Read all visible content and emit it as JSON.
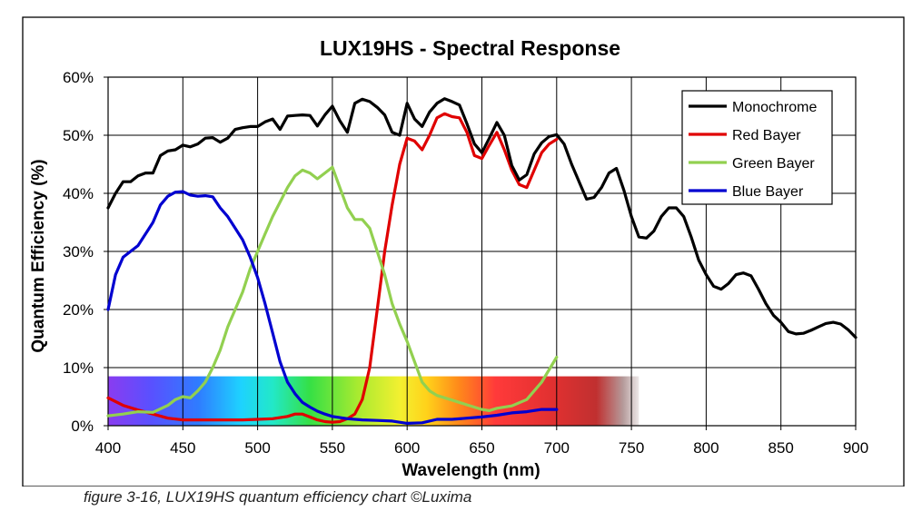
{
  "caption": "figure 3-16, LUX19HS quantum efficiency chart ©Luxima",
  "chart_data": {
    "type": "line",
    "title": "LUX19HS - Spectral Response",
    "xlabel": "Wavelength (nm)",
    "ylabel": "Quantum Efficiency (%)",
    "xlim": [
      400,
      900
    ],
    "ylim": [
      0,
      60
    ],
    "x_ticks": [
      400,
      450,
      500,
      550,
      600,
      650,
      700,
      750,
      800,
      850,
      900
    ],
    "y_ticks": [
      0,
      10,
      20,
      30,
      40,
      50,
      60
    ],
    "y_tick_suffix": "%",
    "grid": true,
    "legend_position": "top-right",
    "background_band": {
      "type": "visible-spectrum",
      "x_range": [
        400,
        755
      ],
      "y_range": [
        0,
        8.5
      ]
    },
    "series": [
      {
        "name": "Monochrome",
        "color": "#000000",
        "points": [
          [
            400,
            37.5
          ],
          [
            405,
            40
          ],
          [
            410,
            42
          ],
          [
            415,
            42
          ],
          [
            420,
            43
          ],
          [
            425,
            43.5
          ],
          [
            430,
            43.5
          ],
          [
            435,
            46.5
          ],
          [
            440,
            47.3
          ],
          [
            445,
            47.5
          ],
          [
            450,
            48.3
          ],
          [
            455,
            48
          ],
          [
            460,
            48.5
          ],
          [
            465,
            49.5
          ],
          [
            470,
            49.6
          ],
          [
            475,
            48.8
          ],
          [
            480,
            49.5
          ],
          [
            485,
            51
          ],
          [
            490,
            51.3
          ],
          [
            495,
            51.5
          ],
          [
            500,
            51.5
          ],
          [
            505,
            52.3
          ],
          [
            510,
            52.8
          ],
          [
            515,
            51
          ],
          [
            520,
            53.3
          ],
          [
            525,
            53.4
          ],
          [
            530,
            53.5
          ],
          [
            535,
            53.4
          ],
          [
            540,
            51.6
          ],
          [
            545,
            53.5
          ],
          [
            550,
            55
          ],
          [
            555,
            52.5
          ],
          [
            560,
            50.5
          ],
          [
            565,
            55.5
          ],
          [
            570,
            56.2
          ],
          [
            575,
            55.8
          ],
          [
            580,
            54.8
          ],
          [
            585,
            53.5
          ],
          [
            590,
            50.5
          ],
          [
            595,
            50
          ],
          [
            600,
            55.5
          ],
          [
            605,
            52.8
          ],
          [
            610,
            51.5
          ],
          [
            615,
            54
          ],
          [
            620,
            55.5
          ],
          [
            625,
            56.3
          ],
          [
            630,
            55.8
          ],
          [
            635,
            55.2
          ],
          [
            640,
            52
          ],
          [
            645,
            48.5
          ],
          [
            650,
            47
          ],
          [
            655,
            49.5
          ],
          [
            660,
            52.2
          ],
          [
            665,
            50
          ],
          [
            670,
            44.8
          ],
          [
            675,
            42.3
          ],
          [
            680,
            43.2
          ],
          [
            685,
            46.8
          ],
          [
            690,
            48.7
          ],
          [
            695,
            49.8
          ],
          [
            700,
            50.1
          ],
          [
            705,
            48.5
          ],
          [
            710,
            45
          ],
          [
            715,
            42
          ],
          [
            720,
            39
          ],
          [
            725,
            39.3
          ],
          [
            730,
            41
          ],
          [
            735,
            43.5
          ],
          [
            740,
            44.3
          ],
          [
            745,
            40.5
          ],
          [
            750,
            36
          ],
          [
            755,
            32.5
          ],
          [
            760,
            32.3
          ],
          [
            765,
            33.5
          ],
          [
            770,
            36
          ],
          [
            775,
            37.5
          ],
          [
            780,
            37.5
          ],
          [
            785,
            36
          ],
          [
            790,
            32.5
          ],
          [
            795,
            28.5
          ],
          [
            800,
            26
          ],
          [
            805,
            24
          ],
          [
            810,
            23.5
          ],
          [
            815,
            24.5
          ],
          [
            820,
            26
          ],
          [
            825,
            26.3
          ],
          [
            830,
            25.8
          ],
          [
            835,
            23.5
          ],
          [
            840,
            21
          ],
          [
            845,
            19
          ],
          [
            850,
            17.8
          ],
          [
            855,
            16.2
          ],
          [
            860,
            15.8
          ],
          [
            865,
            15.9
          ],
          [
            870,
            16.4
          ],
          [
            875,
            17
          ],
          [
            880,
            17.6
          ],
          [
            885,
            17.8
          ],
          [
            890,
            17.5
          ],
          [
            895,
            16.5
          ],
          [
            900,
            15.2
          ]
        ]
      },
      {
        "name": "Red Bayer",
        "color": "#e00000",
        "points": [
          [
            400,
            4.8
          ],
          [
            410,
            3.5
          ],
          [
            420,
            2.7
          ],
          [
            430,
            2
          ],
          [
            440,
            1.3
          ],
          [
            450,
            1
          ],
          [
            460,
            1
          ],
          [
            470,
            1
          ],
          [
            480,
            1
          ],
          [
            490,
            1
          ],
          [
            500,
            1.1
          ],
          [
            510,
            1.2
          ],
          [
            520,
            1.6
          ],
          [
            525,
            2
          ],
          [
            530,
            2
          ],
          [
            535,
            1.5
          ],
          [
            540,
            1
          ],
          [
            545,
            0.7
          ],
          [
            550,
            0.6
          ],
          [
            555,
            0.7
          ],
          [
            560,
            1.2
          ],
          [
            565,
            2
          ],
          [
            570,
            4.5
          ],
          [
            575,
            10
          ],
          [
            580,
            20
          ],
          [
            585,
            30
          ],
          [
            590,
            38
          ],
          [
            595,
            45
          ],
          [
            600,
            49.5
          ],
          [
            605,
            49
          ],
          [
            610,
            47.5
          ],
          [
            615,
            50
          ],
          [
            620,
            53
          ],
          [
            625,
            53.7
          ],
          [
            630,
            53.2
          ],
          [
            635,
            53
          ],
          [
            640,
            50.5
          ],
          [
            645,
            46.5
          ],
          [
            650,
            46
          ],
          [
            655,
            48.3
          ],
          [
            660,
            50.5
          ],
          [
            665,
            47.5
          ],
          [
            670,
            44
          ],
          [
            675,
            41.5
          ],
          [
            680,
            41
          ],
          [
            685,
            44
          ],
          [
            690,
            47
          ],
          [
            695,
            48.5
          ],
          [
            700,
            49.3
          ]
        ]
      },
      {
        "name": "Green Bayer",
        "color": "#92d050",
        "points": [
          [
            400,
            1.7
          ],
          [
            410,
            2
          ],
          [
            420,
            2.4
          ],
          [
            430,
            2.3
          ],
          [
            440,
            3.5
          ],
          [
            445,
            4.5
          ],
          [
            450,
            5
          ],
          [
            455,
            4.8
          ],
          [
            460,
            6
          ],
          [
            465,
            7.5
          ],
          [
            470,
            10
          ],
          [
            475,
            13
          ],
          [
            480,
            17
          ],
          [
            485,
            20
          ],
          [
            490,
            23
          ],
          [
            495,
            27
          ],
          [
            500,
            30
          ],
          [
            505,
            33
          ],
          [
            510,
            36
          ],
          [
            515,
            38.5
          ],
          [
            520,
            41
          ],
          [
            525,
            43
          ],
          [
            530,
            44
          ],
          [
            535,
            43.5
          ],
          [
            540,
            42.5
          ],
          [
            545,
            43.5
          ],
          [
            550,
            44.5
          ],
          [
            555,
            41
          ],
          [
            560,
            37.5
          ],
          [
            565,
            35.5
          ],
          [
            570,
            35.5
          ],
          [
            575,
            34
          ],
          [
            580,
            30
          ],
          [
            585,
            26
          ],
          [
            590,
            21
          ],
          [
            595,
            17.5
          ],
          [
            600,
            14.5
          ],
          [
            605,
            11
          ],
          [
            610,
            7.5
          ],
          [
            615,
            6
          ],
          [
            620,
            5.2
          ],
          [
            630,
            4.4
          ],
          [
            640,
            3.6
          ],
          [
            650,
            2.8
          ],
          [
            655,
            2.6
          ],
          [
            660,
            3
          ],
          [
            670,
            3.4
          ],
          [
            680,
            4.5
          ],
          [
            690,
            7.5
          ],
          [
            700,
            11.8
          ]
        ]
      },
      {
        "name": "Blue Bayer",
        "color": "#0000d0",
        "points": [
          [
            400,
            20
          ],
          [
            405,
            26
          ],
          [
            410,
            29
          ],
          [
            415,
            30
          ],
          [
            420,
            31
          ],
          [
            425,
            33
          ],
          [
            430,
            35
          ],
          [
            435,
            38
          ],
          [
            440,
            39.5
          ],
          [
            445,
            40.2
          ],
          [
            450,
            40.3
          ],
          [
            455,
            39.7
          ],
          [
            460,
            39.5
          ],
          [
            465,
            39.6
          ],
          [
            470,
            39.4
          ],
          [
            475,
            37.5
          ],
          [
            480,
            36
          ],
          [
            485,
            34
          ],
          [
            490,
            32
          ],
          [
            495,
            29
          ],
          [
            500,
            25.5
          ],
          [
            505,
            21
          ],
          [
            510,
            16
          ],
          [
            515,
            11
          ],
          [
            520,
            7.5
          ],
          [
            525,
            5.5
          ],
          [
            530,
            4
          ],
          [
            535,
            3.2
          ],
          [
            540,
            2.5
          ],
          [
            545,
            2
          ],
          [
            550,
            1.6
          ],
          [
            560,
            1.2
          ],
          [
            570,
            1
          ],
          [
            580,
            0.9
          ],
          [
            590,
            0.8
          ],
          [
            600,
            0.4
          ],
          [
            610,
            0.5
          ],
          [
            620,
            1.1
          ],
          [
            630,
            1.1
          ],
          [
            640,
            1.3
          ],
          [
            650,
            1.5
          ],
          [
            660,
            1.8
          ],
          [
            670,
            2.2
          ],
          [
            680,
            2.4
          ],
          [
            690,
            2.8
          ],
          [
            700,
            2.8
          ]
        ]
      }
    ]
  }
}
